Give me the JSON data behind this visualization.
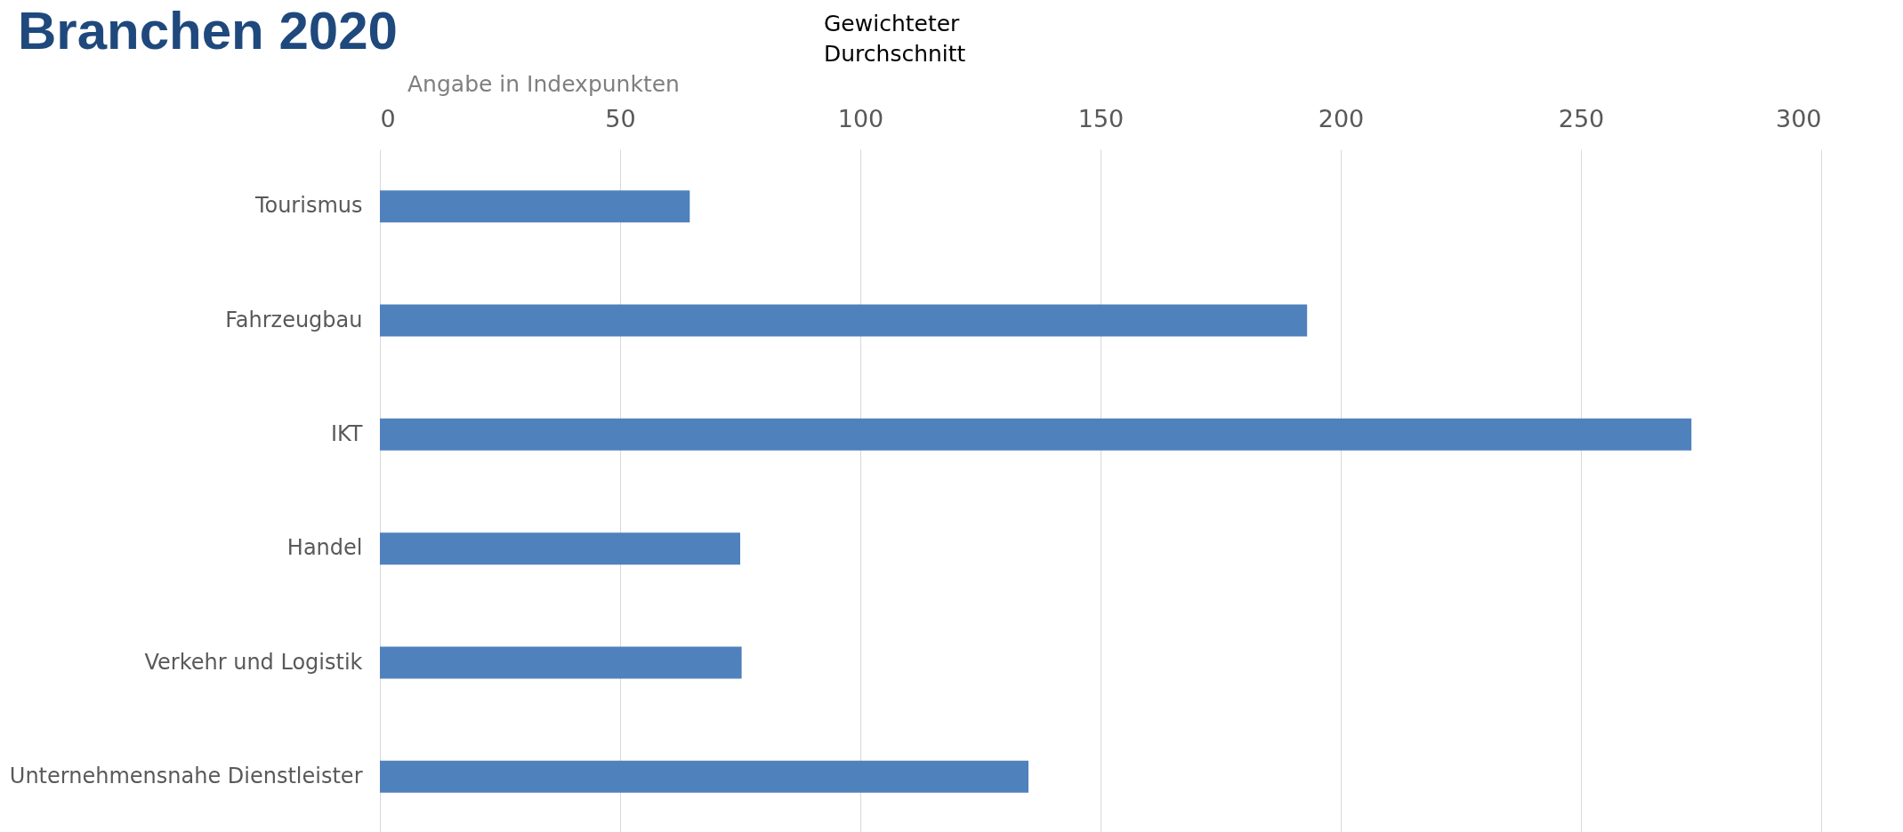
{
  "chart_data": {
    "type": "bar",
    "orientation": "horizontal",
    "title": "Branchen 2020",
    "subtitle": "Angabe in Indexpunkten",
    "annotations": [
      "Gewichteter Durchschnitt"
    ],
    "categories": [
      "Tourismus",
      "Fahrzeugbau",
      "IKT",
      "Handel",
      "Verkehr und Logistik",
      "Unternehmensnahe Dienstleister"
    ],
    "values": [
      64.5,
      193,
      273,
      75,
      75.3,
      135
    ],
    "color": "#4f81bd",
    "xlim": [
      0,
      300
    ],
    "xticks": [
      0,
      50,
      100,
      150,
      200,
      250,
      300
    ],
    "grid": "x"
  }
}
